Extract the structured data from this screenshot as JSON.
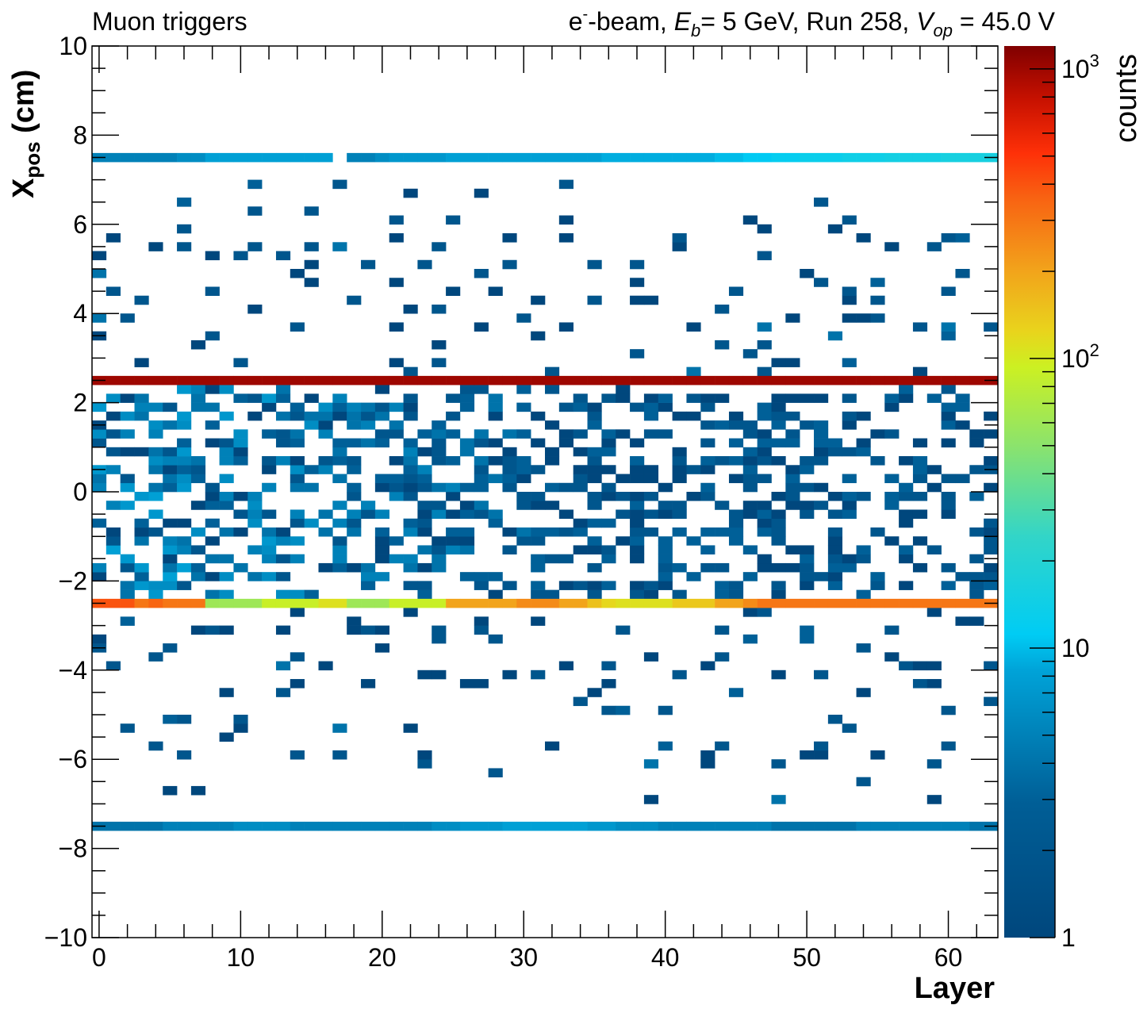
{
  "header": {
    "left_title": "Muon triggers",
    "beam": "e",
    "beam_sup": "-",
    "beam_rest": "-beam, ",
    "eb_sym": "E",
    "eb_sub": "b",
    "eb_val": "= 5 GeV, Run 258, ",
    "vop_sym": "V",
    "vop_sub": "op",
    "vop_val": " = 45.0 V"
  },
  "chart_data": {
    "type": "heatmap",
    "xlabel": "Layer",
    "ylabel_main": "X",
    "ylabel_sub": "pos",
    "ylabel_unit": " (cm)",
    "zlabel": "counts",
    "xlim": [
      -0.5,
      63.5
    ],
    "ylim": [
      -10,
      10
    ],
    "zlim": [
      1,
      1200
    ],
    "zscale": "log",
    "x_ticks": [
      0,
      10,
      20,
      30,
      40,
      50,
      60
    ],
    "x_tick_labels": [
      "0",
      "10",
      "20",
      "30",
      "40",
      "50",
      "60"
    ],
    "y_ticks": [
      -10,
      -8,
      -6,
      -4,
      -2,
      0,
      2,
      4,
      6,
      8,
      10
    ],
    "y_tick_labels": [
      "−10",
      "−8",
      "−6",
      "−4",
      "−2",
      "0",
      "2",
      "4",
      "6",
      "8",
      "10"
    ],
    "z_tick_labels": [
      {
        "value": 1,
        "base": "1",
        "exp": ""
      },
      {
        "value": 10,
        "base": "10",
        "exp": ""
      },
      {
        "value": 100,
        "base": "10",
        "exp": "2"
      },
      {
        "value": 1000,
        "base": "10",
        "exp": "3"
      }
    ],
    "bin_width_y": 0.2,
    "bands": [
      {
        "name": "strip at 2.5 cm",
        "y": 2.5,
        "counts": 1000
      },
      {
        "name": "strip at -2.5 cm",
        "y": -2.5,
        "counts_by_layer": [
          400,
          400,
          400,
          300,
          350,
          300,
          300,
          300,
          60,
          60,
          60,
          60,
          90,
          90,
          90,
          90,
          110,
          110,
          60,
          60,
          60,
          90,
          90,
          90,
          90,
          200,
          200,
          200,
          200,
          200,
          250,
          250,
          250,
          200,
          200,
          150,
          120,
          110,
          110,
          110,
          110,
          140,
          140,
          140,
          200,
          200,
          250,
          300,
          300,
          300,
          300,
          300,
          300,
          300,
          300,
          300,
          300,
          300,
          300,
          300,
          300,
          300,
          300,
          300
        ]
      },
      {
        "name": "strip at 7.5 cm",
        "y": 7.5,
        "counts_by_layer": [
          5,
          5,
          5,
          5,
          5,
          5,
          6,
          6,
          8,
          8,
          8,
          8,
          8,
          8,
          8,
          8,
          8,
          0,
          5,
          5,
          6,
          7,
          7,
          7,
          7,
          8,
          8,
          8,
          8,
          8,
          8,
          8,
          8,
          8,
          8,
          8,
          9,
          9,
          9,
          9,
          9,
          9,
          9,
          9,
          10,
          10,
          11,
          11,
          12,
          12,
          13,
          13,
          13,
          14,
          14,
          14,
          15,
          15,
          15,
          15,
          16,
          16,
          16,
          16
        ]
      },
      {
        "name": "strip at -7.5 cm",
        "y": -7.5,
        "counts_by_layer": [
          4,
          4,
          4,
          4,
          4,
          5,
          5,
          5,
          5,
          5,
          6,
          6,
          6,
          6,
          5,
          5,
          5,
          5,
          5,
          5,
          5,
          5,
          5,
          5,
          6,
          6,
          7,
          7,
          7,
          8,
          8,
          8,
          8,
          8,
          8,
          7,
          7,
          6,
          6,
          6,
          5,
          5,
          5,
          5,
          5,
          5,
          5,
          5,
          4,
          4,
          4,
          4,
          4,
          4,
          5,
          5,
          5,
          5,
          5,
          5,
          5,
          5,
          4,
          4
        ]
      }
    ],
    "scatter_region": [
      {
        "y_from": -2.4,
        "y_to": 2.4,
        "typical_counts": [
          1,
          8
        ],
        "density": "high"
      },
      {
        "y_from": 2.6,
        "y_to": 7.0,
        "typical_counts": [
          1,
          4
        ],
        "density": "low"
      },
      {
        "y_from": -7.0,
        "y_to": -2.6,
        "typical_counts": [
          1,
          4
        ],
        "density": "low"
      }
    ]
  }
}
